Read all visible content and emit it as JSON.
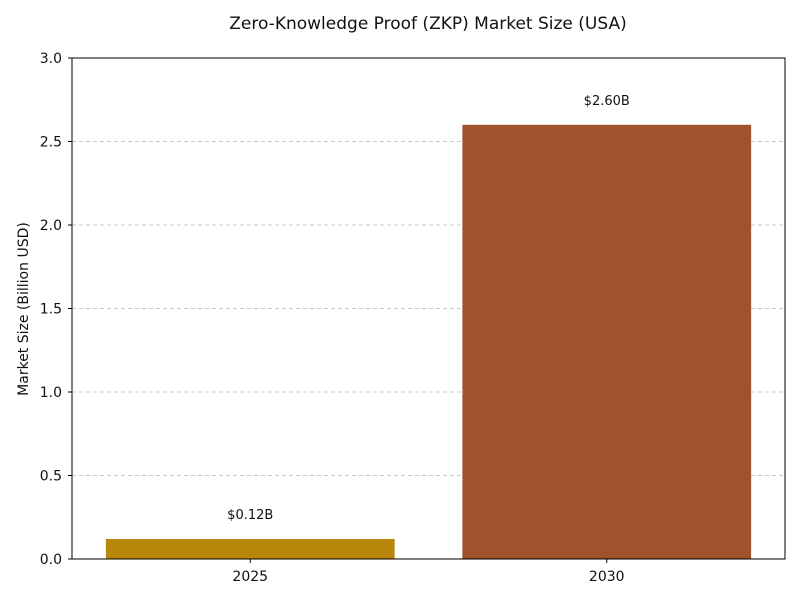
{
  "chart_data": {
    "type": "bar",
    "title": "Zero-Knowledge Proof (ZKP) Market Size (USA)",
    "xlabel": "",
    "ylabel": "Market Size (Billion USD)",
    "categories": [
      "2025",
      "2030"
    ],
    "values": [
      0.12,
      2.6
    ],
    "data_labels": [
      "$0.12B",
      "$2.60B"
    ],
    "bar_colors": [
      "#b8860b",
      "#a0522d"
    ],
    "ylim": [
      0,
      3.0
    ],
    "yticks": [
      0.0,
      0.5,
      1.0,
      1.5,
      2.0,
      2.5,
      3.0
    ],
    "ytick_labels": [
      "0.0",
      "0.5",
      "1.0",
      "1.5",
      "2.0",
      "2.5",
      "3.0"
    ],
    "grid": "y-dashed",
    "legend": "none"
  }
}
